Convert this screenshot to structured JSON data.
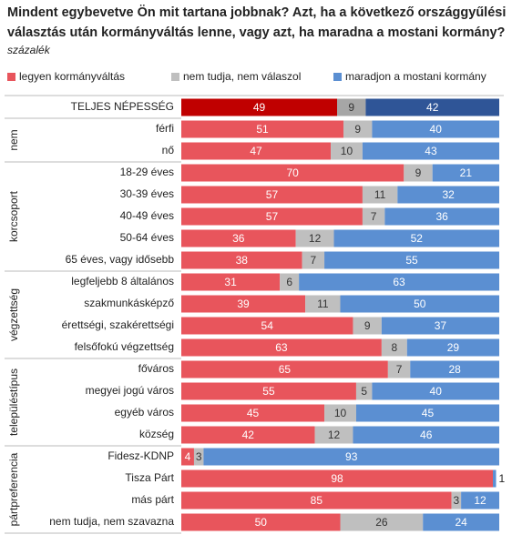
{
  "chart_data": {
    "type": "bar",
    "orientation": "horizontal",
    "stacked": true,
    "title": [
      "Mindent egybevetve Ön mit tartana jobbnak? Azt, ha a következő országgyűlési",
      "választás után kormányváltás lenne, vagy azt, ha maradna a mostani kormány?"
    ],
    "subtitle": "százalék",
    "total": "TELJES NÉPESSÉG",
    "groups": [
      {
        "name": "nem",
        "categories": [
          "férfi",
          "nő"
        ]
      },
      {
        "name": "korcsoport",
        "categories": [
          "18-29 éves",
          "30-39 éves",
          "40-49 éves",
          "50-64 éves",
          "65 éves, vagy idősebb"
        ]
      },
      {
        "name": "végzettség",
        "categories": [
          "legfeljebb 8 általános",
          "szakmunkásképző",
          "érettségi, szakérettségi",
          "felsőfokú végzettség"
        ]
      },
      {
        "name": "településtípus",
        "categories": [
          "főváros",
          "megyei jogú város",
          "egyéb város",
          "község"
        ]
      },
      {
        "name": "pártpreferencia",
        "categories": [
          "Fidesz-KDNP",
          "Tisza Párt",
          "más párt",
          "nem tudja, nem szavazna"
        ]
      }
    ],
    "series": [
      {
        "name": "legyen kormányváltás",
        "color": "#e8555c",
        "total_color": "#c00000",
        "label_color": "#ffffff",
        "values": [
          49,
          51,
          47,
          70,
          57,
          57,
          36,
          38,
          31,
          39,
          54,
          63,
          65,
          55,
          45,
          42,
          4,
          98,
          85,
          50
        ]
      },
      {
        "name": "nem tudja, nem válaszol",
        "color": "#bfbfbf",
        "total_color": "#a6a6a6",
        "label_color": "#333333",
        "values": [
          9,
          9,
          10,
          9,
          11,
          7,
          12,
          7,
          6,
          11,
          9,
          8,
          7,
          5,
          10,
          12,
          3,
          0,
          3,
          26
        ]
      },
      {
        "name": "maradjon a mostani kormány",
        "color": "#5b8fd2",
        "total_color": "#2f5597",
        "label_color": "#ffffff",
        "values": [
          42,
          40,
          43,
          21,
          32,
          36,
          52,
          55,
          63,
          50,
          37,
          29,
          28,
          40,
          45,
          46,
          93,
          1,
          12,
          24
        ]
      }
    ],
    "xlim": [
      0,
      100
    ]
  }
}
